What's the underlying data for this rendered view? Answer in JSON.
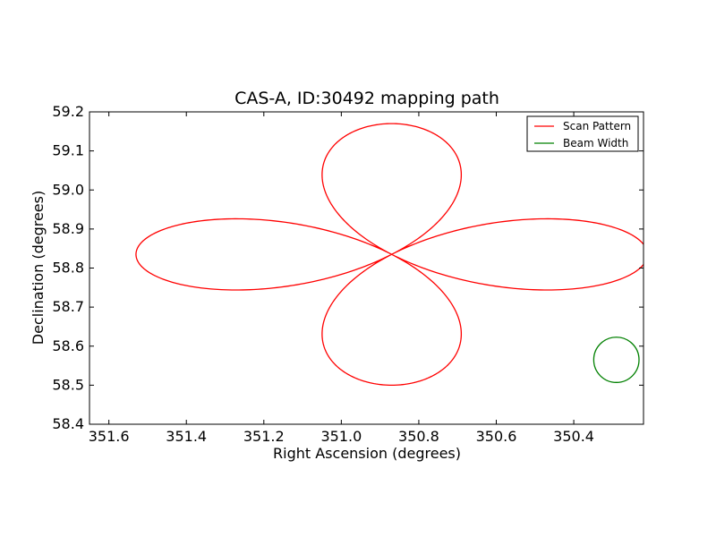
{
  "chart_data": {
    "type": "line",
    "title": "CAS-A, ID:30492 mapping path",
    "xlabel": "Right Ascension (degrees)",
    "ylabel": "Declination (degrees)",
    "xlim": [
      351.65,
      350.22
    ],
    "ylim": [
      58.4,
      59.2
    ],
    "x_inverted": true,
    "xticks": [
      351.6,
      351.4,
      351.2,
      351.0,
      350.8,
      350.6,
      350.4
    ],
    "xtick_labels": [
      "351.6",
      "351.4",
      "351.2",
      "351.0",
      "350.8",
      "350.6",
      "350.4"
    ],
    "yticks": [
      58.4,
      58.5,
      58.6,
      58.7,
      58.8,
      58.9,
      59.0,
      59.1,
      59.2
    ],
    "ytick_labels": [
      "58.4",
      "58.5",
      "58.6",
      "58.7",
      "58.8",
      "58.9",
      "59.0",
      "59.1",
      "59.2"
    ],
    "grid": false,
    "legend_position": "top-right",
    "legend": [
      {
        "label": "Scan Pattern",
        "color": "#ff0000"
      },
      {
        "label": "Beam Width",
        "color": "#008000"
      }
    ],
    "series": [
      {
        "name": "Scan Pattern",
        "kind": "rose-curve",
        "color": "#ff0000",
        "center": [
          350.87,
          58.835
        ],
        "amplitude_ra": 0.66,
        "amplitude_dec": 0.335,
        "lobes": 4
      },
      {
        "name": "Beam Width",
        "kind": "circle",
        "color": "#008000",
        "center": [
          350.29,
          58.565
        ],
        "radius_dec": 0.058
      }
    ]
  }
}
